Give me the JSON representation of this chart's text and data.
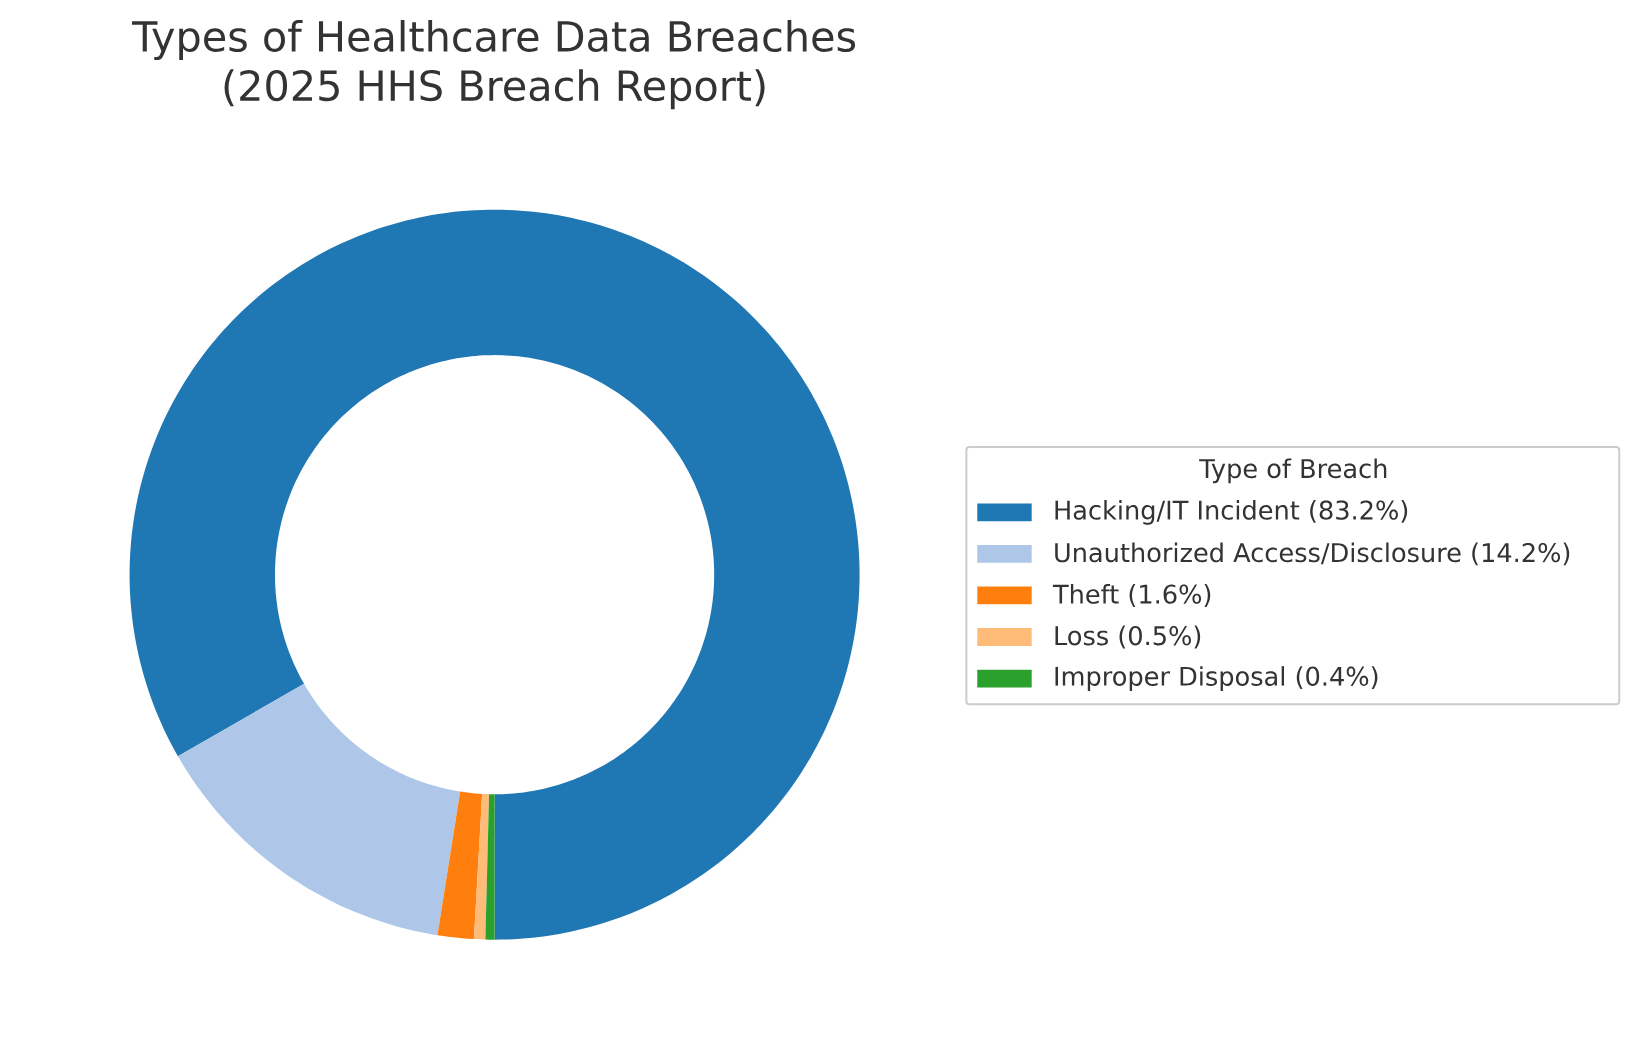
{
  "chart_data": {
    "type": "donut",
    "title": "Types of Healthcare Data Breaches\n(2025 HHS Breach Report)",
    "legend_title": "Type of Breach",
    "categories": [
      "Hacking/IT Incident (83.2%)",
      "Unauthorized Access/Disclosure (14.2%)",
      "Theft (1.6%)",
      "Loss (0.5%)",
      "Improper Disposal (0.4%)"
    ],
    "values": [
      83.2,
      14.2,
      1.6,
      0.5,
      0.4
    ],
    "colors": [
      "#1f77b4",
      "#aec7e8",
      "#ff7f0e",
      "#ffbb78",
      "#2ca02c"
    ],
    "legend": "right"
  }
}
